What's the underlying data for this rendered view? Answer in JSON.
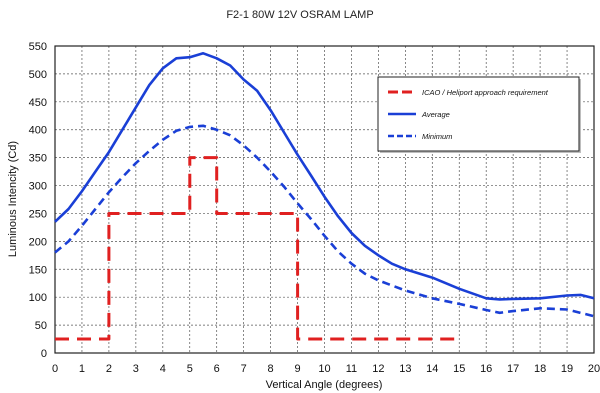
{
  "chart_data": {
    "type": "line",
    "title": "F2-1  80W  12V OSRAM LAMP",
    "xlabel": "Vertical Angle (degrees)",
    "ylabel": "Luminous Intencity (Cd)",
    "xlim": [
      0,
      20
    ],
    "ylim": [
      0,
      550
    ],
    "xticks": [
      "0",
      "1",
      "2",
      "3",
      "4",
      "5",
      "6",
      "7",
      "8",
      "9",
      "10",
      "11",
      "12",
      "13",
      "14",
      "15",
      "16",
      "17",
      "18",
      "19",
      "20"
    ],
    "yticks": [
      "0",
      "50",
      "100",
      "150",
      "200",
      "250",
      "300",
      "350",
      "400",
      "450",
      "500",
      "550"
    ],
    "grid": "dashed",
    "legend_position": "top-right",
    "colors": {
      "requirement": "#e02020",
      "average": "#1a3fd6",
      "minimum": "#1a3fd6"
    },
    "series": [
      {
        "name": "ICAO /  Heliport approach requirement",
        "style": "dashed",
        "x": [
          0,
          2,
          2,
          5,
          5,
          6,
          6,
          9,
          9,
          15
        ],
        "y": [
          25,
          25,
          250,
          250,
          350,
          350,
          250,
          250,
          25,
          25
        ]
      },
      {
        "name": "Average",
        "style": "solid",
        "x": [
          0,
          0.5,
          1,
          1.5,
          2,
          2.5,
          3,
          3.5,
          4,
          4.5,
          5,
          5.5,
          6,
          6.5,
          7,
          7.5,
          8,
          8.5,
          9,
          9.5,
          10,
          10.5,
          11,
          11.5,
          12,
          12.5,
          13,
          14,
          15,
          16,
          16.5,
          17,
          18,
          19,
          19.5,
          20
        ],
        "y": [
          235,
          258,
          290,
          325,
          360,
          400,
          440,
          480,
          510,
          528,
          530,
          537,
          528,
          515,
          490,
          470,
          435,
          395,
          355,
          318,
          280,
          245,
          215,
          192,
          175,
          160,
          150,
          135,
          115,
          98,
          96,
          97,
          98,
          103,
          104,
          98
        ]
      },
      {
        "name": "Minimum",
        "style": "dashed",
        "x": [
          0,
          0.5,
          1,
          1.5,
          2,
          2.5,
          3,
          3.5,
          4,
          4.5,
          5,
          5.5,
          6,
          6.5,
          7,
          7.5,
          8,
          8.5,
          9,
          9.5,
          10,
          10.5,
          11,
          11.5,
          12,
          13,
          14,
          15,
          16,
          16.5,
          17,
          18,
          19,
          20
        ],
        "y": [
          180,
          200,
          228,
          258,
          288,
          315,
          340,
          362,
          382,
          398,
          405,
          407,
          400,
          390,
          372,
          350,
          325,
          298,
          268,
          240,
          210,
          182,
          160,
          142,
          130,
          112,
          98,
          88,
          77,
          72,
          75,
          80,
          78,
          66
        ]
      }
    ]
  }
}
